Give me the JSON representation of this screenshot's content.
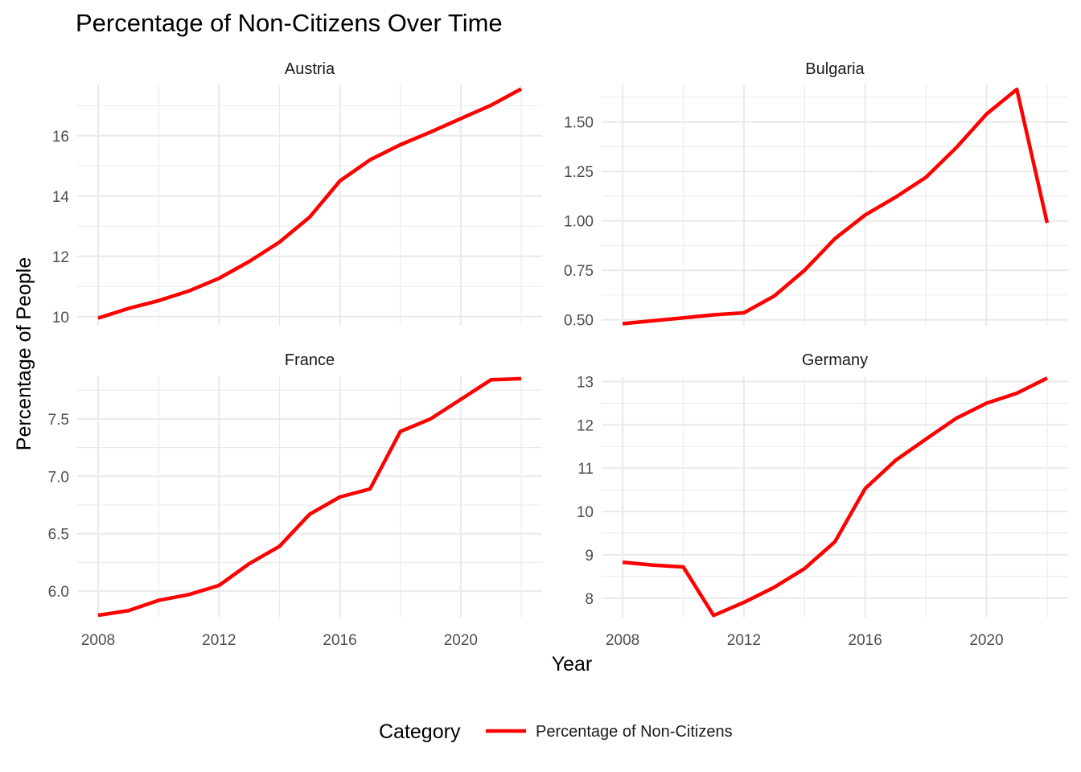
{
  "chart_data": {
    "type": "line",
    "title": "Percentage of Non-Citizens Over Time",
    "xlabel": "Year",
    "ylabel": "Percentage of People",
    "legend": {
      "title": "Category",
      "position": "bottom",
      "entries": [
        {
          "label": "Percentage of Non-Citizens",
          "color": "#ff0000"
        }
      ]
    },
    "grid": true,
    "x": [
      2008,
      2009,
      2010,
      2011,
      2012,
      2013,
      2014,
      2015,
      2016,
      2017,
      2018,
      2019,
      2020,
      2021,
      2022
    ],
    "xlim": [
      2008,
      2022
    ],
    "x_ticks": [
      "2008",
      "2012",
      "2016",
      "2020"
    ],
    "series_name": "Percentage of Non-Citizens",
    "color": "#ff0000",
    "panels": [
      {
        "country": "Austria",
        "values": [
          9.95,
          10.27,
          10.53,
          10.85,
          11.27,
          11.83,
          12.47,
          13.3,
          14.5,
          15.2,
          15.7,
          16.12,
          16.57,
          17.01,
          17.55
        ],
        "ylim": [
          9.7,
          17.7
        ],
        "y_ticks": [
          10,
          12,
          14,
          16
        ]
      },
      {
        "country": "Bulgaria",
        "values": [
          0.48,
          0.495,
          0.51,
          0.525,
          0.535,
          0.62,
          0.75,
          0.91,
          1.03,
          1.12,
          1.22,
          1.37,
          1.54,
          1.665,
          0.99
        ],
        "ylim": [
          0.47,
          1.69
        ],
        "y_ticks": [
          0.5,
          0.75,
          1.0,
          1.25,
          1.5
        ],
        "y_tick_labels": [
          "0.50",
          "0.75",
          "1.00",
          "1.25",
          "1.50"
        ]
      },
      {
        "country": "France",
        "values": [
          5.79,
          5.83,
          5.92,
          5.97,
          6.05,
          6.24,
          6.39,
          6.67,
          6.82,
          6.89,
          7.39,
          7.5,
          7.67,
          7.84,
          7.85
        ],
        "ylim": [
          5.77,
          7.87
        ],
        "y_ticks": [
          6.0,
          6.5,
          7.0,
          7.5
        ],
        "y_tick_labels": [
          "6.0",
          "6.5",
          "7.0",
          "7.5"
        ]
      },
      {
        "country": "Germany",
        "values": [
          8.83,
          8.76,
          8.72,
          7.6,
          7.9,
          8.25,
          8.68,
          9.3,
          10.53,
          11.18,
          11.67,
          12.15,
          12.5,
          12.73,
          13.08
        ],
        "ylim": [
          7.55,
          13.12
        ],
        "y_ticks": [
          8,
          9,
          10,
          11,
          12,
          13
        ]
      }
    ]
  }
}
